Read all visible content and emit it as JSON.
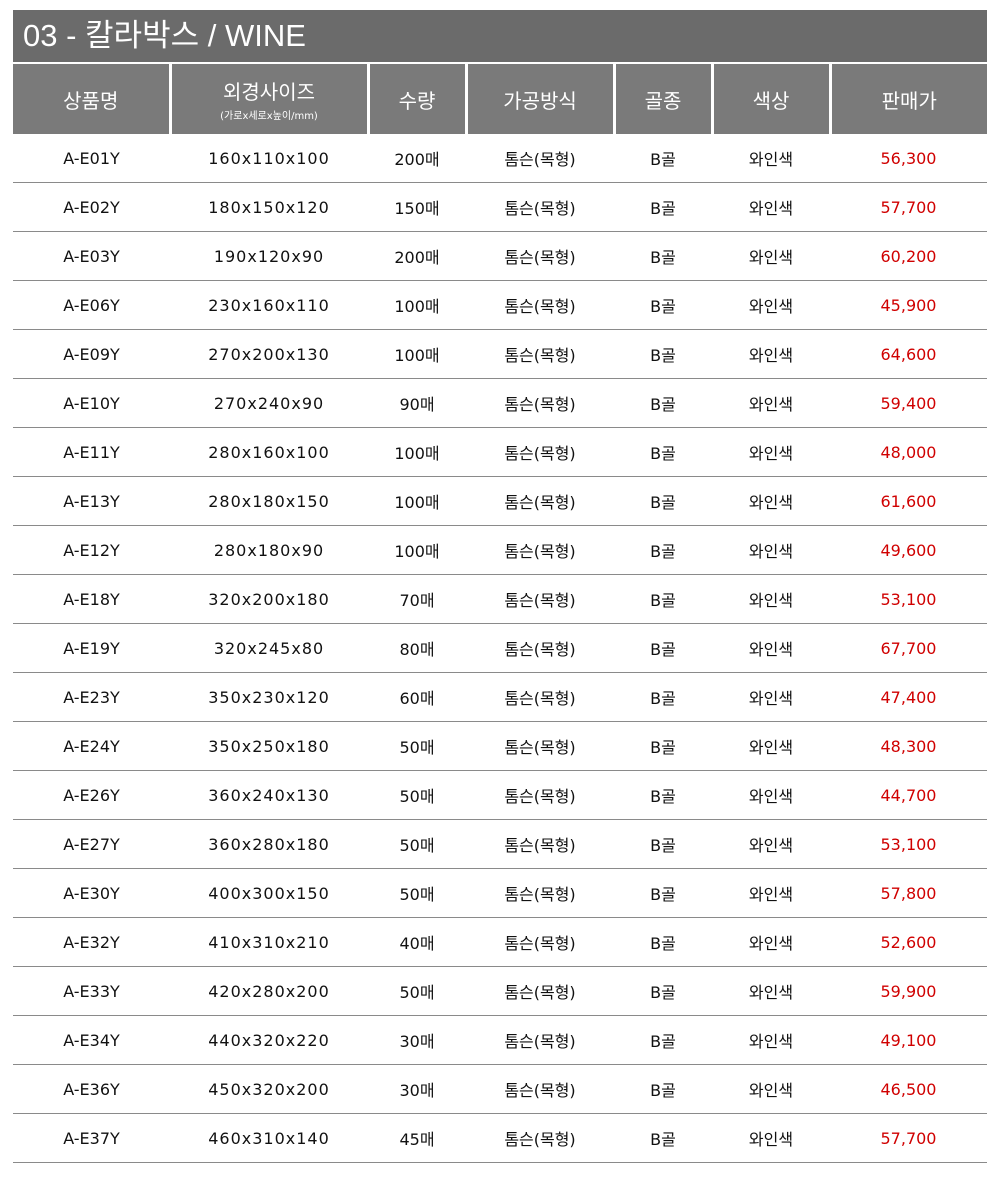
{
  "title": "03 - 칼라박스 / WINE",
  "headers": {
    "name": "상품명",
    "size": "외경사이즈",
    "size_sub": "(가로x세로x높이/mm)",
    "qty": "수량",
    "method": "가공방식",
    "flute": "골종",
    "color": "색상",
    "price": "판매가"
  },
  "price_color": "#d00000",
  "rows": [
    {
      "name": "A-E01Y",
      "size": "160x110x100",
      "qty": "200매",
      "method": "톰슨(목형)",
      "flute": "B골",
      "color": "와인색",
      "price": "56,300"
    },
    {
      "name": "A-E02Y",
      "size": "180x150x120",
      "qty": "150매",
      "method": "톰슨(목형)",
      "flute": "B골",
      "color": "와인색",
      "price": "57,700"
    },
    {
      "name": "A-E03Y",
      "size": "190x120x90",
      "qty": "200매",
      "method": "톰슨(목형)",
      "flute": "B골",
      "color": "와인색",
      "price": "60,200"
    },
    {
      "name": "A-E06Y",
      "size": "230x160x110",
      "qty": "100매",
      "method": "톰슨(목형)",
      "flute": "B골",
      "color": "와인색",
      "price": "45,900"
    },
    {
      "name": "A-E09Y",
      "size": "270x200x130",
      "qty": "100매",
      "method": "톰슨(목형)",
      "flute": "B골",
      "color": "와인색",
      "price": "64,600"
    },
    {
      "name": "A-E10Y",
      "size": "270x240x90",
      "qty": "90매",
      "method": "톰슨(목형)",
      "flute": "B골",
      "color": "와인색",
      "price": "59,400"
    },
    {
      "name": "A-E11Y",
      "size": "280x160x100",
      "qty": "100매",
      "method": "톰슨(목형)",
      "flute": "B골",
      "color": "와인색",
      "price": "48,000"
    },
    {
      "name": "A-E13Y",
      "size": "280x180x150",
      "qty": "100매",
      "method": "톰슨(목형)",
      "flute": "B골",
      "color": "와인색",
      "price": "61,600"
    },
    {
      "name": "A-E12Y",
      "size": "280x180x90",
      "qty": "100매",
      "method": "톰슨(목형)",
      "flute": "B골",
      "color": "와인색",
      "price": "49,600"
    },
    {
      "name": "A-E18Y",
      "size": "320x200x180",
      "qty": "70매",
      "method": "톰슨(목형)",
      "flute": "B골",
      "color": "와인색",
      "price": "53,100"
    },
    {
      "name": "A-E19Y",
      "size": "320x245x80",
      "qty": "80매",
      "method": "톰슨(목형)",
      "flute": "B골",
      "color": "와인색",
      "price": "67,700"
    },
    {
      "name": "A-E23Y",
      "size": "350x230x120",
      "qty": "60매",
      "method": "톰슨(목형)",
      "flute": "B골",
      "color": "와인색",
      "price": "47,400"
    },
    {
      "name": "A-E24Y",
      "size": "350x250x180",
      "qty": "50매",
      "method": "톰슨(목형)",
      "flute": "B골",
      "color": "와인색",
      "price": "48,300"
    },
    {
      "name": "A-E26Y",
      "size": "360x240x130",
      "qty": "50매",
      "method": "톰슨(목형)",
      "flute": "B골",
      "color": "와인색",
      "price": "44,700"
    },
    {
      "name": "A-E27Y",
      "size": "360x280x180",
      "qty": "50매",
      "method": "톰슨(목형)",
      "flute": "B골",
      "color": "와인색",
      "price": "53,100"
    },
    {
      "name": "A-E30Y",
      "size": "400x300x150",
      "qty": "50매",
      "method": "톰슨(목형)",
      "flute": "B골",
      "color": "와인색",
      "price": "57,800"
    },
    {
      "name": "A-E32Y",
      "size": "410x310x210",
      "qty": "40매",
      "method": "톰슨(목형)",
      "flute": "B골",
      "color": "와인색",
      "price": "52,600"
    },
    {
      "name": "A-E33Y",
      "size": "420x280x200",
      "qty": "50매",
      "method": "톰슨(목형)",
      "flute": "B골",
      "color": "와인색",
      "price": "59,900"
    },
    {
      "name": "A-E34Y",
      "size": "440x320x220",
      "qty": "30매",
      "method": "톰슨(목형)",
      "flute": "B골",
      "color": "와인색",
      "price": "49,100"
    },
    {
      "name": "A-E36Y",
      "size": "450x320x200",
      "qty": "30매",
      "method": "톰슨(목형)",
      "flute": "B골",
      "color": "와인색",
      "price": "46,500"
    },
    {
      "name": "A-E37Y",
      "size": "460x310x140",
      "qty": "45매",
      "method": "톰슨(목형)",
      "flute": "B골",
      "color": "와인색",
      "price": "57,700"
    }
  ]
}
